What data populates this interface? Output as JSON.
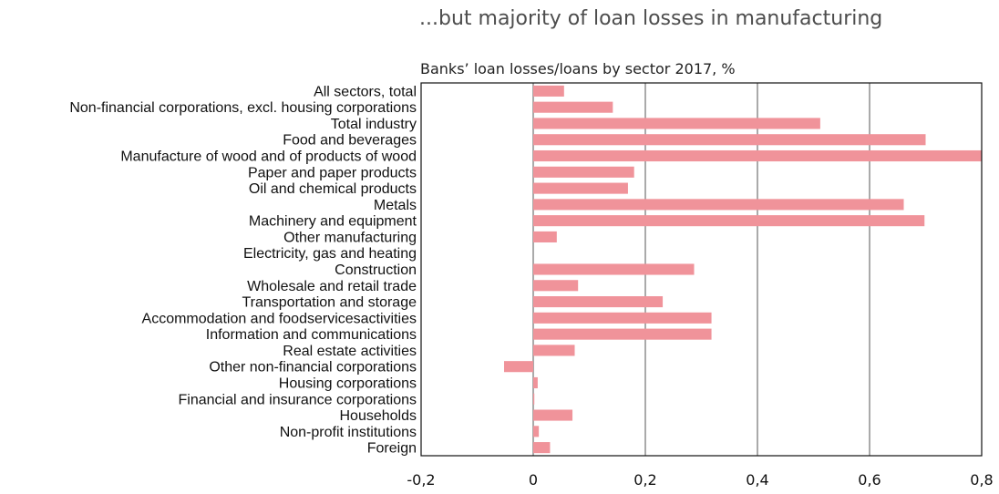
{
  "chart_data": {
    "type": "bar",
    "orientation": "horizontal",
    "title": "...but majority of loan losses in manufacturing",
    "subtitle": "Banks’ loan losses/loans by sector 2017, %",
    "xlabel": "",
    "ylabel": "",
    "xlim": [
      -0.2,
      0.8
    ],
    "xticks": [
      -0.2,
      0,
      0.2,
      0.4,
      0.6,
      0.8
    ],
    "xtick_labels": [
      "-0,2",
      "0",
      "0,2",
      "0,4",
      "0,6",
      "0,8"
    ],
    "grid": "vertical",
    "bar_color": "#f0939a",
    "categories": [
      "All sectors, total",
      "Non-financial corporations, excl. housing corporations",
      "Total industry",
      "Food and beverages",
      "Manufacture of wood and of products of wood",
      "Paper and paper products",
      "Oil and chemical products",
      "Metals",
      "Machinery and equipment",
      "Other manufacturing",
      "Electricity, gas and heating",
      "Construction",
      "Wholesale and retail trade",
      "Transportation and storage",
      "Accommodation and foodservicesactivities",
      "Information and communications",
      "Real estate activities",
      "Other non-financial corporations",
      "Housing corporations",
      "Financial and insurance corporations",
      "Households",
      "Non-profit institutions",
      "Foreign"
    ],
    "values": [
      0.055,
      0.142,
      0.512,
      0.7,
      0.8,
      0.18,
      0.169,
      0.661,
      0.698,
      0.042,
      0.0,
      0.287,
      0.08,
      0.231,
      0.318,
      0.318,
      0.074,
      -0.052,
      0.008,
      0.002,
      0.07,
      0.01,
      0.03
    ]
  }
}
